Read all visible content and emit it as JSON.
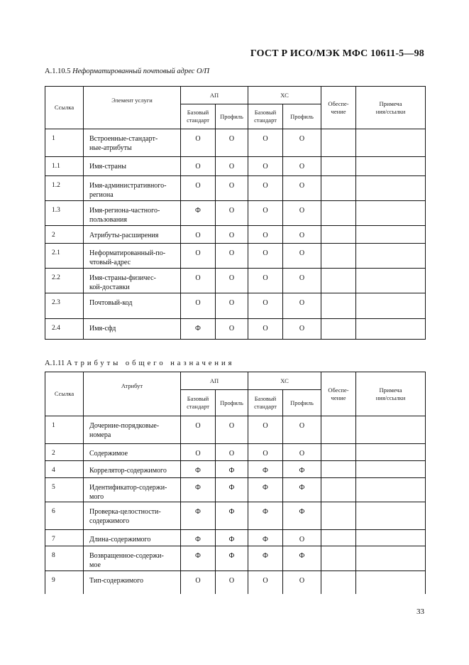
{
  "header": {
    "doc_id": "ГОСТ Р ИСО/МЭК МФС 10611-5—98"
  },
  "sections": [
    {
      "number": "А.1.10.5",
      "title": "Неформатированный почтовый адрес О/П",
      "headers": {
        "ref": "Ссылка",
        "element": "Элемент услуги",
        "ap": "АП",
        "xs": "ХС",
        "base": "Базовый стандарт",
        "profile": "Профиль",
        "support": "Обеспе-\nчение",
        "notes": "Примеча\nния/ссылки"
      },
      "rows": [
        {
          "ref": "1",
          "name": "Встроенные-стандарт-\nные-атрибуты",
          "ap_base": "О",
          "ap_profile": "О",
          "xs_base": "О",
          "xs_profile": "О"
        },
        {
          "ref": "1.1",
          "name": "Имя-страны",
          "ap_base": "О",
          "ap_profile": "О",
          "xs_base": "О",
          "xs_profile": "О"
        },
        {
          "ref": "1.2",
          "name": "Имя-административного-\nрегиона",
          "ap_base": "О",
          "ap_profile": "О",
          "xs_base": "О",
          "xs_profile": "О"
        },
        {
          "ref": "1.3",
          "name": "Имя-региона-частного-\nпользования",
          "ap_base": "Ф",
          "ap_profile": "О",
          "xs_base": "О",
          "xs_profile": "О"
        },
        {
          "ref": "2",
          "name": "Атрибуты-расширения",
          "ap_base": "О",
          "ap_profile": "О",
          "xs_base": "О",
          "xs_profile": "О"
        },
        {
          "ref": "2.1",
          "name": "Неформатированный-по-\nчтовый-адрес",
          "ap_base": "О",
          "ap_profile": "О",
          "xs_base": "О",
          "xs_profile": "О"
        },
        {
          "ref": "2.2",
          "name": "Имя-страны-физичес-\nкой-доставки",
          "ap_base": "О",
          "ap_profile": "О",
          "xs_base": "О",
          "xs_profile": "О"
        },
        {
          "ref": "2.3",
          "name": "Почтовый-код",
          "ap_base": "О",
          "ap_profile": "О",
          "xs_base": "О",
          "xs_profile": "О"
        },
        {
          "ref": "2.4",
          "name": "Имя-сфд",
          "ap_base": "Ф",
          "ap_profile": "О",
          "xs_base": "О",
          "xs_profile": "О"
        }
      ]
    },
    {
      "number": "А.1.11",
      "title": "Атрибуты общего назначения",
      "headers": {
        "ref": "Ссылка",
        "element": "Атрибут",
        "ap": "АП",
        "xs": "ХС",
        "base": "Базовый стандарт",
        "profile": "Профиль",
        "support": "Обеспе-\nчение",
        "notes": "Примеча\nния/ссылки"
      },
      "rows": [
        {
          "ref": "1",
          "name": "Дочерние-порядковые-\nномера",
          "ap_base": "О",
          "ap_profile": "О",
          "xs_base": "О",
          "xs_profile": "О"
        },
        {
          "ref": "2",
          "name": "Содержимое",
          "ap_base": "О",
          "ap_profile": "О",
          "xs_base": "О",
          "xs_profile": "О"
        },
        {
          "ref": "4",
          "name": "Коррелятор-содержимого",
          "ap_base": "Ф",
          "ap_profile": "Ф",
          "xs_base": "Ф",
          "xs_profile": "Ф"
        },
        {
          "ref": "5",
          "name": "Идентификатор-содержи-\nмого",
          "ap_base": "Ф",
          "ap_profile": "Ф",
          "xs_base": "Ф",
          "xs_profile": "Ф"
        },
        {
          "ref": "6",
          "name": "Проверка-целостности-\nсодержимого",
          "ap_base": "Ф",
          "ap_profile": "Ф",
          "xs_base": "Ф",
          "xs_profile": "Ф"
        },
        {
          "ref": "7",
          "name": "Длина-содержимого",
          "ap_base": "Ф",
          "ap_profile": "Ф",
          "xs_base": "Ф",
          "xs_profile": "О"
        },
        {
          "ref": "8",
          "name": "Возвращенное-содержи-\nмое",
          "ap_base": "Ф",
          "ap_profile": "Ф",
          "xs_base": "Ф",
          "xs_profile": "Ф"
        },
        {
          "ref": "9",
          "name": "Тип-содержимого",
          "ap_base": "О",
          "ap_profile": "О",
          "xs_base": "О",
          "xs_profile": "О"
        }
      ]
    }
  ],
  "footer": {
    "page_number": "33"
  }
}
